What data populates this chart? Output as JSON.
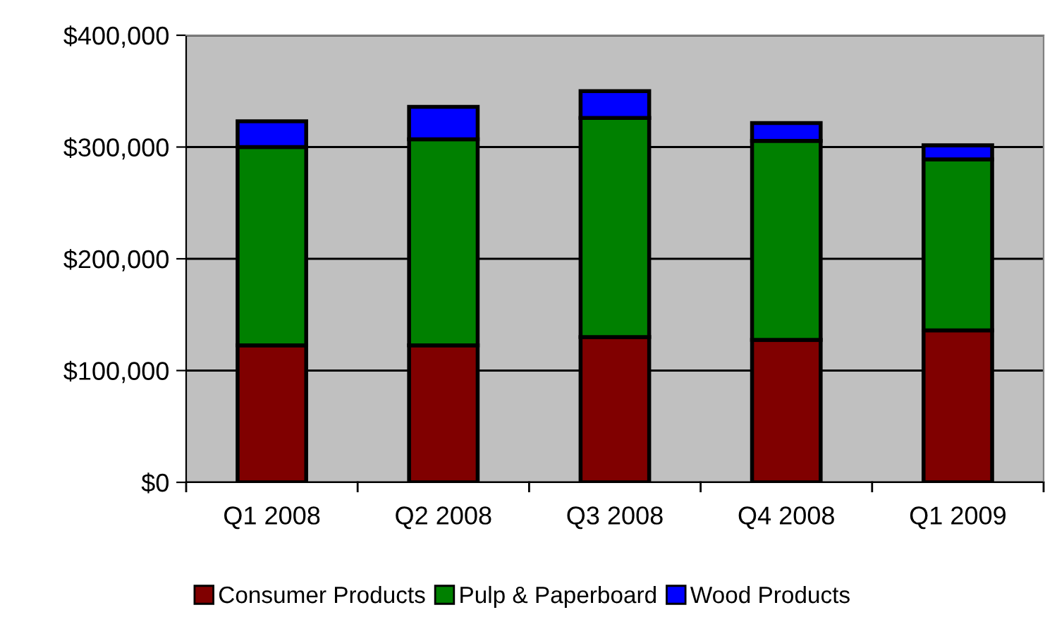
{
  "chart_data": {
    "type": "bar",
    "stacked": true,
    "categories": [
      "Q1 2008",
      "Q2 2008",
      "Q3 2008",
      "Q4 2008",
      "Q1 2009"
    ],
    "series": [
      {
        "name": "Consumer Products",
        "color": "#800000",
        "values": [
          122500,
          122500,
          130000,
          127500,
          136000
        ]
      },
      {
        "name": "Pulp & Paperboard",
        "color": "#008000",
        "values": [
          177500,
          184500,
          196000,
          178000,
          153000
        ]
      },
      {
        "name": "Wood Products",
        "color": "#0000ff",
        "values": [
          23000,
          29000,
          24000,
          16000,
          12500
        ]
      }
    ],
    "ylim": [
      0,
      400000
    ],
    "yticks": [
      {
        "value": 0,
        "label": "$0"
      },
      {
        "value": 100000,
        "label": "$100,000"
      },
      {
        "value": 200000,
        "label": "$200,000"
      },
      {
        "value": 300000,
        "label": "$300,000"
      },
      {
        "value": 400000,
        "label": "$400,000"
      }
    ],
    "grid": "y",
    "legend": "bottom"
  }
}
